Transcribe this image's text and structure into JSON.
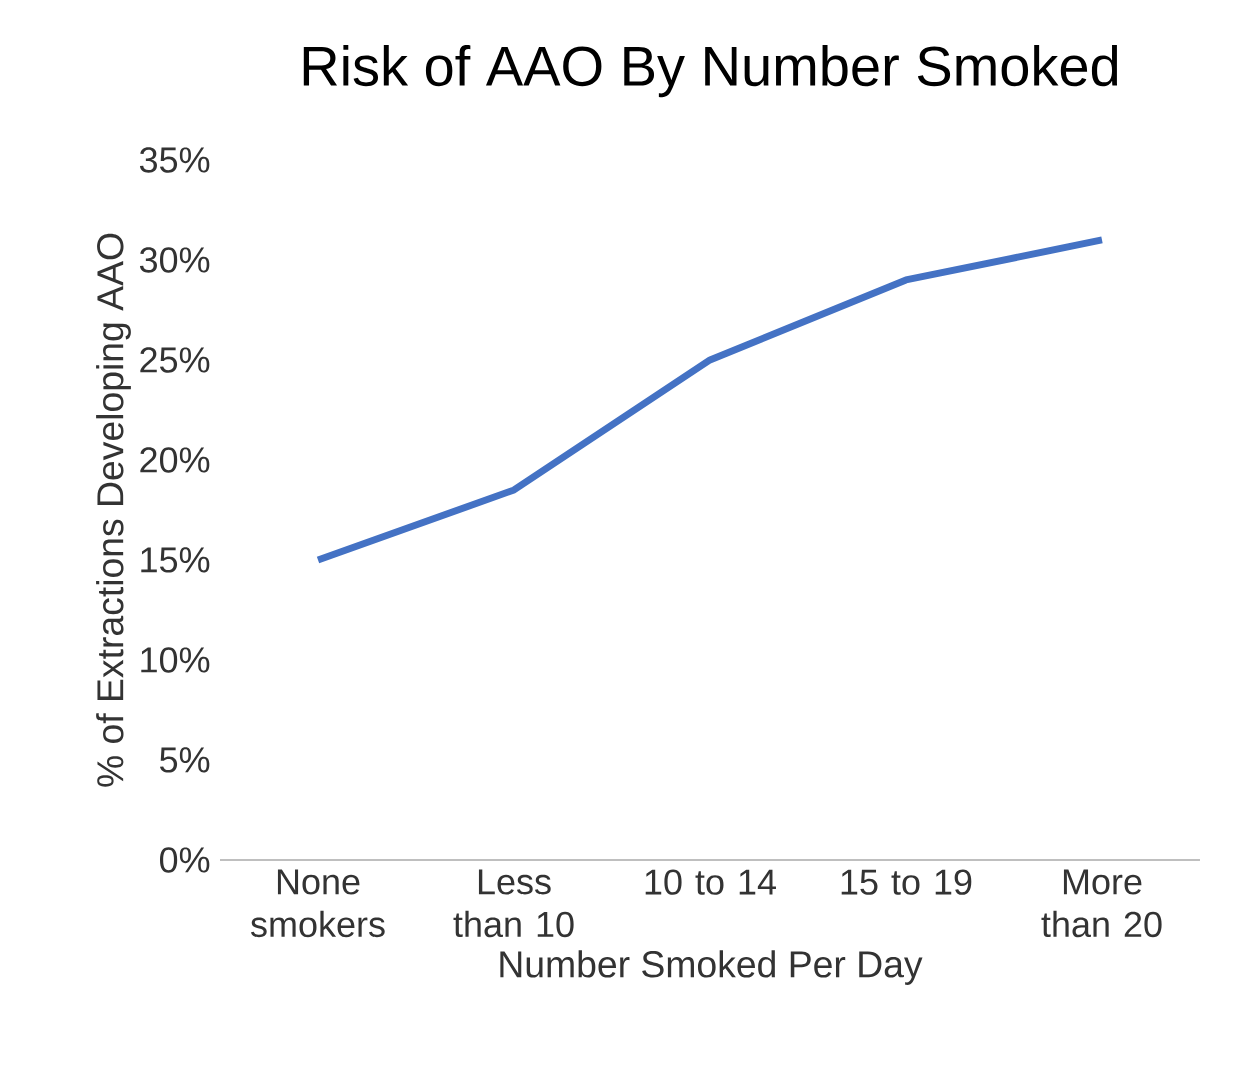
{
  "chart_data": {
    "type": "line",
    "title": "Risk of AAO By Number Smoked",
    "xlabel": "Number Smoked Per Day",
    "ylabel": "% of Extractions Developing AAO",
    "categories": [
      "None smokers",
      "Less than 10",
      "10 to 14",
      "15 to 19",
      "More than 20"
    ],
    "series": [
      {
        "color": "#4472c4",
        "values": [
          15,
          18.5,
          25,
          29,
          31
        ]
      }
    ],
    "ylim": [
      0,
      35
    ],
    "yticks": [
      {
        "value": 0,
        "label": "0%"
      },
      {
        "value": 5,
        "label": "5%"
      },
      {
        "value": 10,
        "label": "10%"
      },
      {
        "value": 15,
        "label": "15%"
      },
      {
        "value": 20,
        "label": "20%"
      },
      {
        "value": 25,
        "label": "25%"
      },
      {
        "value": 30,
        "label": "30%"
      },
      {
        "value": 35,
        "label": "35%"
      }
    ],
    "grid": false,
    "legend": false,
    "marker": "none",
    "line_style": "solid"
  }
}
